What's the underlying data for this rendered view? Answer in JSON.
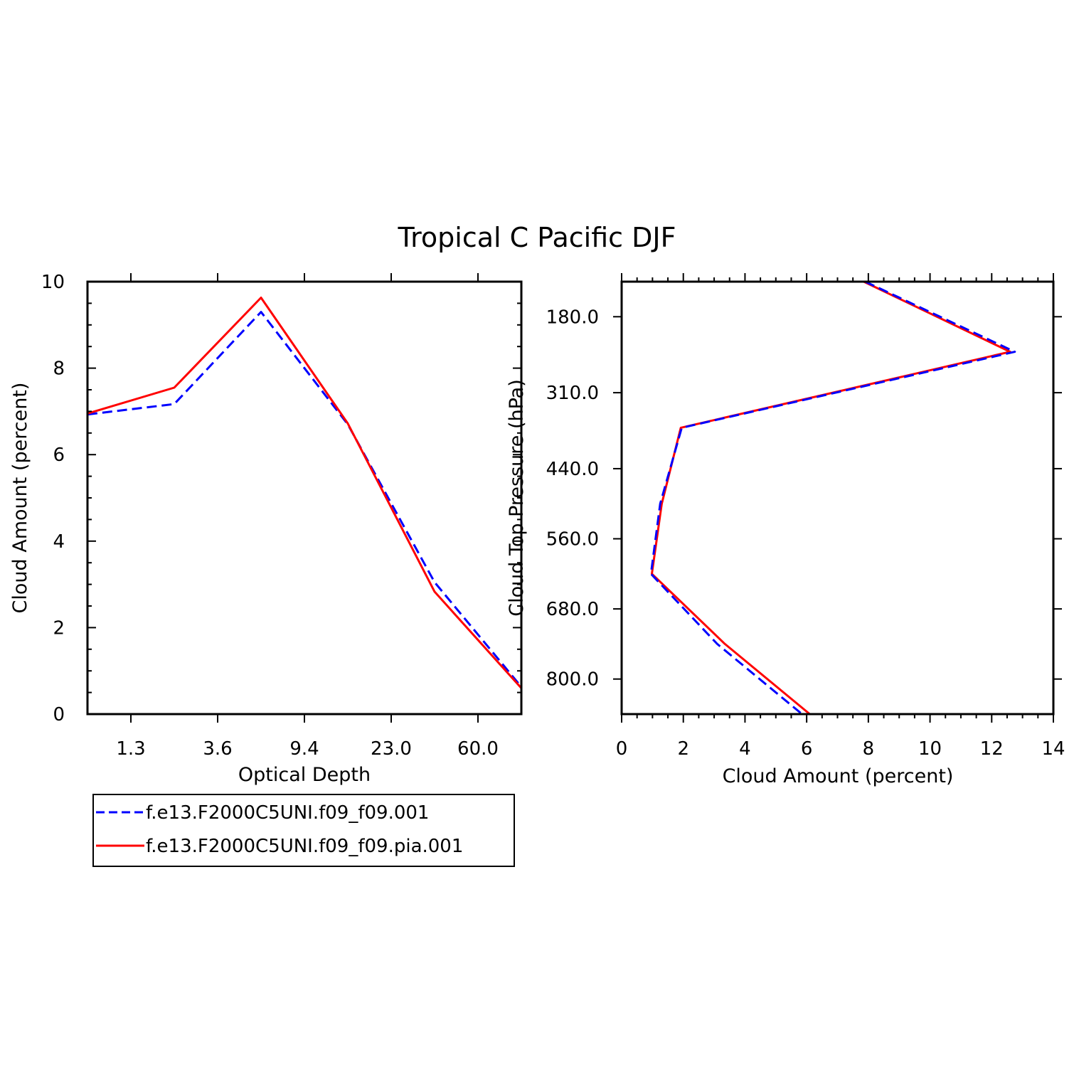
{
  "figure": {
    "title": "Tropical C Pacific DJF"
  },
  "colors": {
    "series_1": "#0000ff",
    "series_2": "#ff0000",
    "axis": "#000000"
  },
  "legend": {
    "placement": "below-left-panel",
    "entries": [
      {
        "label": "f.e13.F2000C5UNI.f09_f09.001",
        "style": "dashed",
        "color": "#0000ff"
      },
      {
        "label": "f.e13.F2000C5UNI.f09_f09.pia.001",
        "style": "solid",
        "color": "#ff0000"
      }
    ]
  },
  "chart_data": [
    {
      "type": "line",
      "xlabel": "Optical Depth",
      "ylabel": "Cloud Amount (percent)",
      "x_tick_labels": [
        "1.3",
        "3.6",
        "9.4",
        "23.0",
        "60.0"
      ],
      "x_tick_positions": [
        1,
        3,
        5,
        7,
        9
      ],
      "xlim": [
        0,
        10
      ],
      "y_ticks": [
        0,
        2,
        4,
        6,
        8,
        10
      ],
      "y_tick_labels": [
        "0",
        "2",
        "4",
        "6",
        "8",
        "10"
      ],
      "ylim": [
        0,
        10
      ],
      "grid": false,
      "x": [
        0,
        2,
        4,
        6,
        8,
        10
      ],
      "series": [
        {
          "name": "f.e13.F2000C5UNI.f09_f09.001",
          "values": [
            6.93,
            7.17,
            9.3,
            6.7,
            3.05,
            0.63
          ]
        },
        {
          "name": "f.e13.F2000C5UNI.f09_f09.pia.001",
          "values": [
            6.95,
            7.55,
            9.63,
            6.72,
            2.83,
            0.6
          ]
        }
      ]
    },
    {
      "type": "line",
      "xlabel": "Cloud Amount (percent)",
      "ylabel": "Cloud Top Pressure (hPa)",
      "x_ticks": [
        0,
        2,
        4,
        6,
        8,
        10,
        12,
        14
      ],
      "x_tick_labels": [
        "0",
        "2",
        "4",
        "6",
        "8",
        "10",
        "12",
        "14"
      ],
      "xlim": [
        0,
        14
      ],
      "y_ticks": [
        180,
        310,
        440,
        560,
        680,
        800
      ],
      "y_tick_labels": [
        "180.0",
        "310.0",
        "440.0",
        "560.0",
        "680.0",
        "800.0"
      ],
      "ylim": [
        860,
        120
      ],
      "y_inverted": true,
      "grid": false,
      "pressure": [
        120,
        240,
        370,
        500,
        620,
        740,
        860
      ],
      "series": [
        {
          "name": "f.e13.F2000C5UNI.f09_f09.001",
          "values": [
            7.9,
            12.75,
            1.95,
            1.25,
            0.95,
            3.1,
            5.85
          ]
        },
        {
          "name": "f.e13.F2000C5UNI.f09_f09.pia.001",
          "values": [
            7.85,
            12.6,
            1.92,
            1.3,
            0.98,
            3.35,
            6.1
          ]
        }
      ]
    }
  ]
}
